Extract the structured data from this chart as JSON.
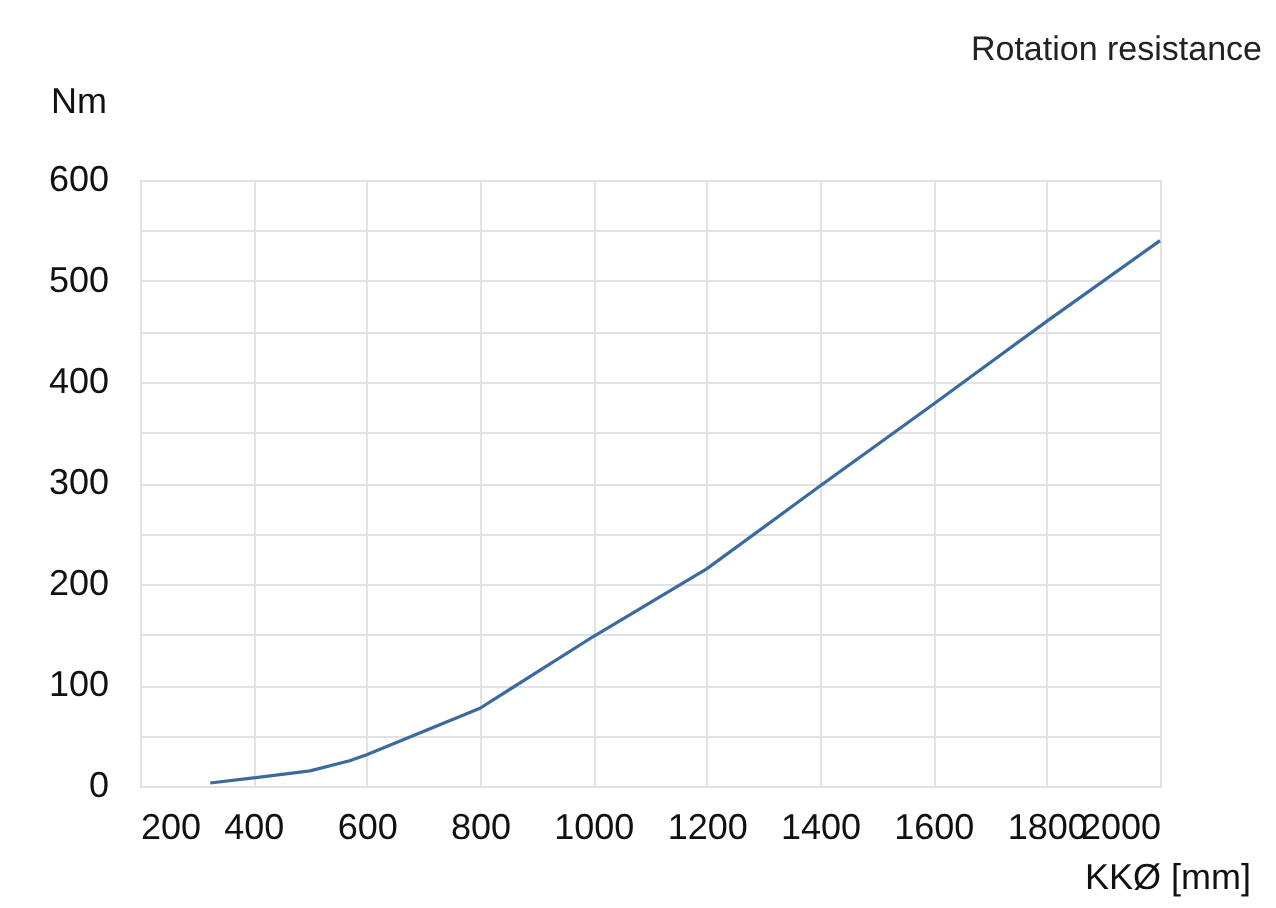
{
  "chart_data": {
    "type": "line",
    "title": "Rotation resistance",
    "xlabel": "KKØ [mm]",
    "ylabel": "Nm",
    "x": [
      324,
      400,
      500,
      570,
      600,
      800,
      1000,
      1200,
      1400,
      1600,
      1800,
      2000
    ],
    "series": [
      {
        "color": "#3b6aa0",
        "values": [
          3,
          8,
          15,
          25,
          31,
          77,
          148,
          215,
          297,
          378,
          460,
          540
        ]
      }
    ],
    "xlim": [
      200,
      2000
    ],
    "xticks": [
      200,
      400,
      600,
      800,
      1000,
      1200,
      1400,
      1600,
      1800,
      2000
    ],
    "ylim": [
      0,
      600
    ],
    "yticks": [
      0,
      {
        "value": 50,
        "label": null
      },
      100,
      {
        "value": 150,
        "label": null
      },
      200,
      {
        "value": 250,
        "label": null
      },
      300,
      {
        "value": 350,
        "label": null
      },
      400,
      {
        "value": 450,
        "label": null
      },
      500,
      {
        "value": 550,
        "label": null
      },
      600
    ],
    "grid": true,
    "marker": "none",
    "line_style": "solid"
  }
}
